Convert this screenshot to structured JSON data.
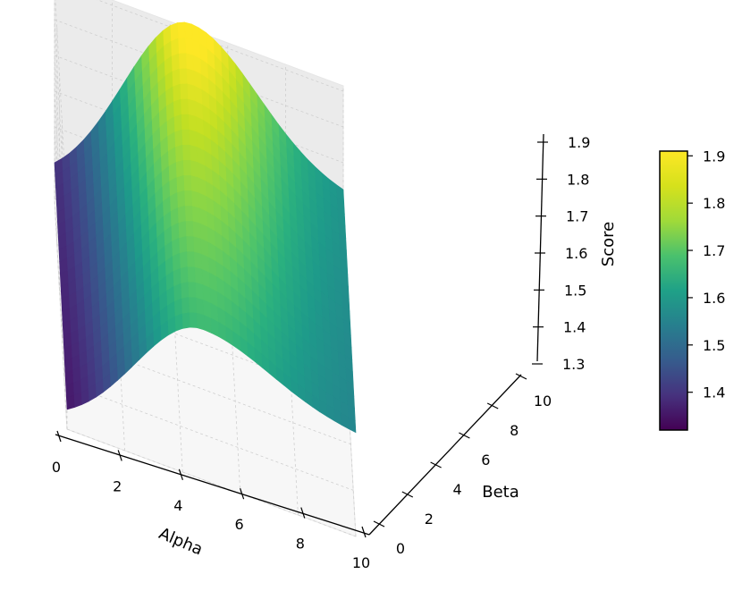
{
  "chart_data": {
    "type": "surface",
    "title": "",
    "x_axis": {
      "label": "Alpha",
      "range": [
        0,
        10
      ],
      "ticks": [
        0,
        2,
        4,
        6,
        8,
        10
      ]
    },
    "y_axis": {
      "label": "Beta",
      "range": [
        0,
        10
      ],
      "ticks": [
        0,
        2,
        4,
        6,
        8,
        10
      ]
    },
    "z_axis": {
      "label": "Score",
      "range": [
        1.3,
        1.9
      ],
      "ticks": [
        1.3,
        1.4,
        1.5,
        1.6,
        1.7,
        1.8,
        1.9
      ]
    },
    "surface": {
      "description_of_shape": "Score depends on Beta only in mild way; concave ridge along Alpha≈4-5; peak near Alpha 5, Beta 10",
      "samples": [
        {
          "alpha": 0,
          "beta": 0,
          "score": 1.3
        },
        {
          "alpha": 0,
          "beta": 10,
          "score": 1.32
        },
        {
          "alpha": 2.5,
          "beta": 0,
          "score": 1.61
        },
        {
          "alpha": 2.5,
          "beta": 10,
          "score": 1.74
        },
        {
          "alpha": 5,
          "beta": 0,
          "score": 1.72
        },
        {
          "alpha": 5,
          "beta": 10,
          "score": 1.91
        },
        {
          "alpha": 10,
          "beta": 0,
          "score": 1.6
        },
        {
          "alpha": 10,
          "beta": 10,
          "score": 1.62
        }
      ]
    },
    "colormap": "viridis",
    "colorbar": {
      "range": [
        1.32,
        1.91
      ],
      "ticks": [
        1.4,
        1.5,
        1.6,
        1.7,
        1.8,
        1.9
      ]
    },
    "grid": true
  }
}
